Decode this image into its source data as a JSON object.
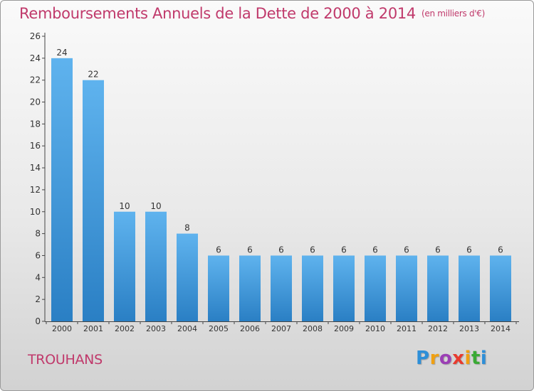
{
  "title": "Remboursements Annuels de la Dette de 2000 à 2014",
  "unit": "(en milliers d'€)",
  "commune": "TROUHANS",
  "logo": {
    "letters": [
      {
        "ch": "P",
        "color": "#2e8fd8"
      },
      {
        "ch": "r",
        "color": "#f0a012"
      },
      {
        "ch": "o",
        "color": "#9b3fb5"
      },
      {
        "ch": "x",
        "color": "#e83b2e"
      },
      {
        "ch": "i",
        "color": "#f0a012"
      },
      {
        "ch": "t",
        "color": "#3aaa35"
      },
      {
        "ch": "i",
        "color": "#2e8fd8"
      }
    ]
  },
  "colors": {
    "accent": "#c0396b",
    "bar_top": "#5fb3ee",
    "bar_bottom": "#2a7fc4"
  },
  "chart_data": {
    "type": "bar",
    "categories": [
      "2000",
      "2001",
      "2002",
      "2003",
      "2004",
      "2005",
      "2006",
      "2007",
      "2008",
      "2009",
      "2010",
      "2011",
      "2012",
      "2013",
      "2014"
    ],
    "values": [
      24,
      22,
      10,
      10,
      8,
      6,
      6,
      6,
      6,
      6,
      6,
      6,
      6,
      6,
      6
    ],
    "ylim": [
      0,
      26
    ],
    "yticks": [
      0,
      2,
      4,
      6,
      8,
      10,
      12,
      14,
      16,
      18,
      20,
      22,
      24,
      26
    ],
    "grid": false,
    "data_labels": true
  }
}
